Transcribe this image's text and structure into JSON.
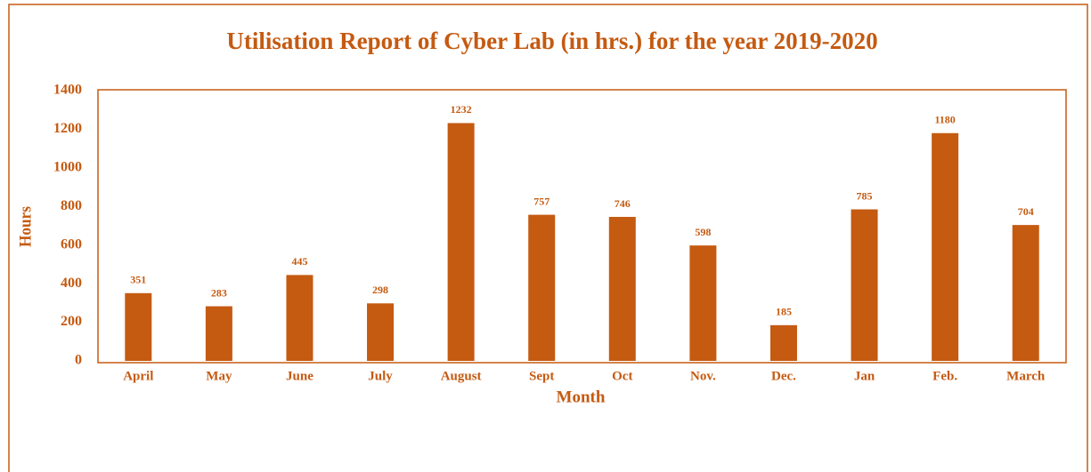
{
  "chart_data": {
    "type": "bar",
    "title": "Utilisation Report of Cyber Lab (in hrs.) for the year 2019-2020",
    "x_label": "Month",
    "y_label": "Hours",
    "categories": [
      "April",
      "May",
      "June",
      "July",
      "August",
      "Sept",
      "Oct",
      "Nov.",
      "Dec.",
      "Jan",
      "Feb.",
      "March"
    ],
    "values": [
      351,
      283,
      445,
      298,
      1232,
      757,
      746,
      598,
      185,
      785,
      1180,
      704
    ],
    "color": "#c55a11",
    "ylim": [
      0,
      1400
    ],
    "yticks": [
      0,
      200,
      400,
      600,
      800,
      1000,
      1200,
      1400
    ],
    "grid": false
  }
}
